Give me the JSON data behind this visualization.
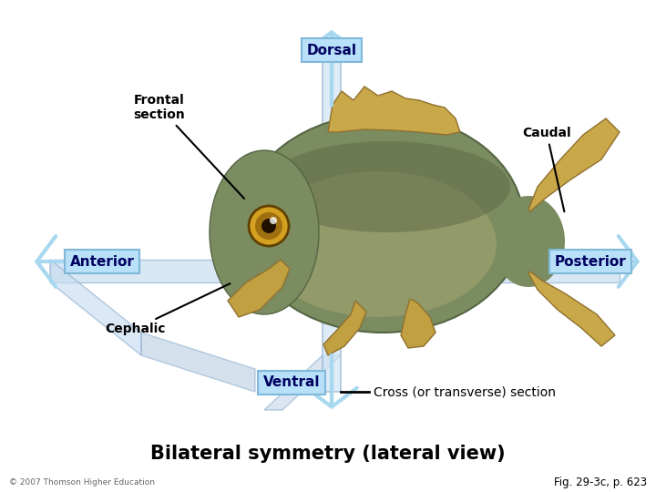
{
  "bg_color": "#ffffff",
  "title": "Bilateral symmetry (lateral view)",
  "title_fontsize": 15,
  "title_fontweight": "bold",
  "fig_ref": "Fig. 29-3c, p. 623",
  "copyright": "© 2007 Thomson Higher Education",
  "arrow_color": "#a8d8f0",
  "arrow_label_facecolor": "#b8e0f8",
  "arrow_label_edgecolor": "#80b8d8",
  "arrow_label_textcolor": "#000060",
  "plane_color": "#c8ddf0",
  "plane_edge_color": "#90b0d0",
  "vert_plane_color": "#d0e4f4",
  "vert_plane_edge": "#90b0d0",
  "label_fontsize": 10,
  "cross_section_text": "Cross (or transverse) section"
}
